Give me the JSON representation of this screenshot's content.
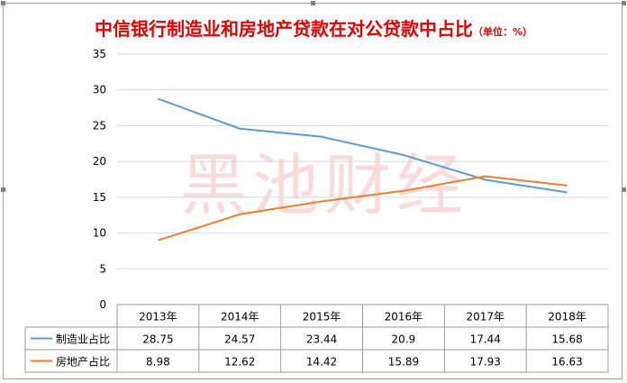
{
  "chart_data": {
    "type": "line",
    "title": "中信银行制造业和房地产贷款在对公贷款中占比",
    "unit_note": "（单位：%）",
    "watermark": "黑池财经",
    "categories": [
      "2013年",
      "2014年",
      "2015年",
      "2016年",
      "2017年",
      "2018年"
    ],
    "ylim": [
      0,
      35
    ],
    "yticks": [
      "0",
      "5",
      "10",
      "15",
      "20",
      "25",
      "30",
      "35"
    ],
    "grid": true,
    "legend": "data-table-left",
    "series": [
      {
        "name": "制造业占比",
        "color": "#5b9bd5",
        "values": [
          28.75,
          24.57,
          23.44,
          20.9,
          17.44,
          15.68
        ],
        "labels": [
          "28.75",
          "24.57",
          "23.44",
          "20.9",
          "17.44",
          "15.68"
        ]
      },
      {
        "name": "房地产占比",
        "color": "#ed7d31",
        "values": [
          8.98,
          12.62,
          14.42,
          15.89,
          17.93,
          16.63
        ],
        "labels": [
          "8.98",
          "12.62",
          "14.42",
          "15.89",
          "17.93",
          "16.63"
        ]
      }
    ]
  }
}
